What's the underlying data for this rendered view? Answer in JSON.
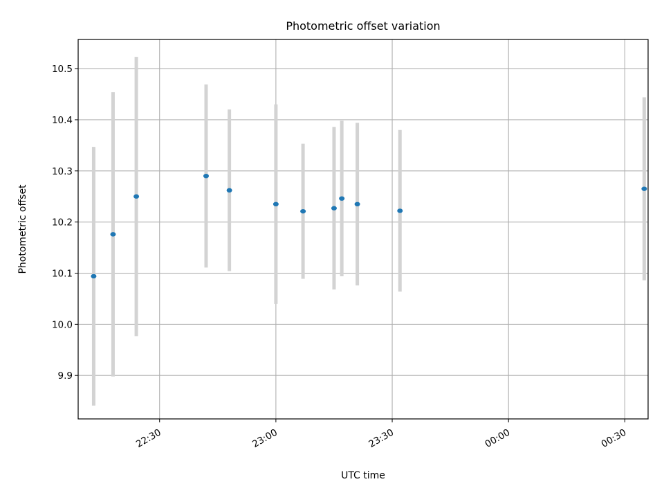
{
  "chart_data": {
    "type": "scatter",
    "title": "Photometric offset variation",
    "xlabel": "UTC time",
    "ylabel": "Photometric offset",
    "x_ticks": [
      "22:30",
      "23:00",
      "23:30",
      "00:00",
      "00:30"
    ],
    "y_ticks": [
      "9.9",
      "10.0",
      "10.1",
      "10.2",
      "10.3",
      "10.4",
      "10.5"
    ],
    "xlim": [
      "22:09",
      "00:36"
    ],
    "ylim": [
      9.815,
      10.557
    ],
    "grid": true,
    "marker_color": "#1f77b4",
    "errorbar_color": "#d3d3d3",
    "series": [
      {
        "points": [
          {
            "x": "22:13",
            "y": 10.094,
            "yerr": 0.253
          },
          {
            "x": "22:18",
            "y": 10.176,
            "yerr": 0.278
          },
          {
            "x": "22:24",
            "y": 10.25,
            "yerr": 0.273
          },
          {
            "x": "22:42",
            "y": 10.29,
            "yerr": 0.179
          },
          {
            "x": "22:48",
            "y": 10.262,
            "yerr": 0.158
          },
          {
            "x": "23:00",
            "y": 10.235,
            "yerr": 0.195
          },
          {
            "x": "23:07",
            "y": 10.221,
            "yerr": 0.132
          },
          {
            "x": "23:15",
            "y": 10.227,
            "yerr": 0.159
          },
          {
            "x": "23:17",
            "y": 10.246,
            "yerr": 0.152
          },
          {
            "x": "23:21",
            "y": 10.235,
            "yerr": 0.159
          },
          {
            "x": "23:32",
            "y": 10.222,
            "yerr": 0.158
          },
          {
            "x": "00:35",
            "y": 10.265,
            "yerr": 0.179
          }
        ]
      }
    ]
  }
}
